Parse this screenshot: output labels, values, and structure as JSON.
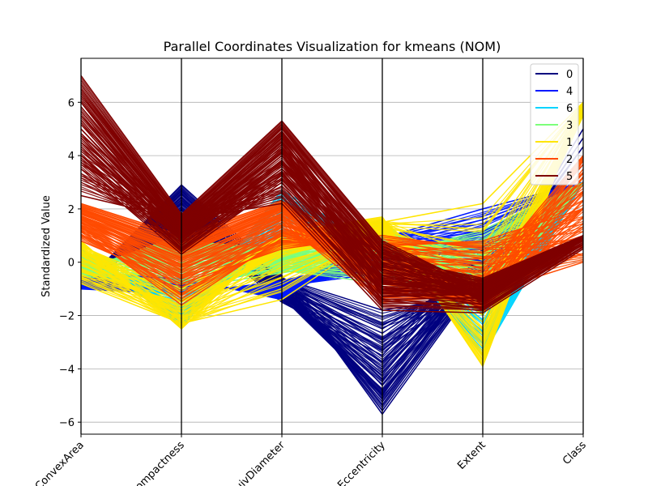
{
  "chart_data": {
    "type": "line",
    "title": "Parallel Coordinates Visualization for kmeans (NOM)",
    "xlabel": "",
    "ylabel": "Standardized Value",
    "categories": [
      "ConvexArea",
      "Compactness",
      "EquivDiameter",
      "Eccentricity",
      "Extent",
      "Class"
    ],
    "ylim": [
      -6.45,
      7.65
    ],
    "yticks": [
      -6,
      -4,
      -2,
      0,
      2,
      4,
      6
    ],
    "grid": true,
    "legend_position": "top-right",
    "series": [
      {
        "name": "0",
        "color": "#00007f",
        "profiles": [
          [
            -0.9,
            2.9,
            -0.5,
            -5.7,
            -0.5,
            3.0
          ],
          [
            -0.7,
            2.2,
            -1.0,
            -4.8,
            -0.3,
            3.0
          ],
          [
            -0.8,
            1.5,
            -1.5,
            -3.5,
            0.5,
            3.0
          ],
          [
            -0.5,
            1.0,
            -0.8,
            -2.5,
            -0.2,
            3.0
          ],
          [
            -1.0,
            2.6,
            -1.3,
            -5.0,
            0.2,
            3.0
          ],
          [
            -0.6,
            1.8,
            -0.6,
            -1.8,
            -1.2,
            5.0
          ]
        ]
      },
      {
        "name": "4",
        "color": "#0019ff",
        "profiles": [
          [
            -0.6,
            -0.8,
            -1.2,
            0.5,
            1.2,
            3.0
          ],
          [
            -0.8,
            -1.0,
            -0.9,
            -0.4,
            0.8,
            3.0
          ],
          [
            -0.4,
            -0.6,
            -1.4,
            0.9,
            2.0,
            3.0
          ],
          [
            -1.0,
            -1.2,
            -0.7,
            0.2,
            -0.5,
            3.0
          ],
          [
            -0.7,
            -0.9,
            -1.0,
            1.1,
            0.3,
            3.0
          ]
        ]
      },
      {
        "name": "6",
        "color": "#00d4ff",
        "profiles": [
          [
            0.2,
            -2.2,
            2.7,
            0.5,
            -3.0,
            3.0
          ],
          [
            -0.3,
            -1.5,
            0.5,
            0.8,
            -1.5,
            3.0
          ],
          [
            0.5,
            -2.4,
            1.5,
            1.0,
            -3.5,
            3.0
          ],
          [
            -0.1,
            -1.0,
            -0.2,
            0.3,
            -0.8,
            3.0
          ],
          [
            0.3,
            -2.0,
            2.2,
            0.6,
            -2.5,
            3.0
          ]
        ]
      },
      {
        "name": "3",
        "color": "#7dff7a",
        "profiles": [
          [
            -0.3,
            1.0,
            -0.3,
            -0.8,
            -1.5,
            3.0
          ],
          [
            -0.2,
            0.5,
            0.2,
            0.9,
            0.6,
            3.0
          ],
          [
            0.4,
            -0.5,
            0.8,
            1.4,
            -0.9,
            3.0
          ],
          [
            -0.5,
            -1.0,
            -0.4,
            0.2,
            1.2,
            3.0
          ],
          [
            0.0,
            0.2,
            0.0,
            0.5,
            0.0,
            3.0
          ],
          [
            -0.4,
            0.8,
            0.5,
            1.6,
            -1.8,
            3.0
          ]
        ]
      },
      {
        "name": "1",
        "color": "#ffe500",
        "profiles": [
          [
            0.8,
            -2.5,
            1.1,
            1.7,
            -3.9,
            6.0
          ],
          [
            0.3,
            -2.0,
            0.6,
            1.3,
            -3.5,
            6.0
          ],
          [
            -0.5,
            -1.5,
            0.3,
            1.0,
            -2.5,
            5.5
          ],
          [
            0.6,
            -1.0,
            1.0,
            1.5,
            2.2,
            6.0
          ],
          [
            -0.8,
            -2.3,
            -1.4,
            1.1,
            -1.0,
            5.8
          ]
        ]
      },
      {
        "name": "2",
        "color": "#ff4a00",
        "profiles": [
          [
            2.2,
            1.0,
            2.3,
            0.3,
            -1.8,
            2.0
          ],
          [
            1.5,
            -0.3,
            1.5,
            -1.5,
            -1.2,
            0.0
          ],
          [
            1.8,
            0.4,
            1.9,
            -0.5,
            -0.5,
            4.0
          ],
          [
            0.8,
            -0.8,
            0.5,
            1.0,
            0.5,
            0.3
          ],
          [
            2.0,
            0.6,
            2.1,
            -1.0,
            -1.6,
            3.8
          ],
          [
            1.2,
            -1.6,
            0.9,
            0.6,
            0.8,
            2.0
          ]
        ]
      },
      {
        "name": "5",
        "color": "#7f0000",
        "profiles": [
          [
            7.0,
            1.8,
            5.3,
            0.8,
            -1.0,
            1.0
          ],
          [
            6.5,
            1.5,
            5.0,
            0.5,
            -1.5,
            1.0
          ],
          [
            5.0,
            1.0,
            4.0,
            -0.5,
            -1.3,
            0.8
          ],
          [
            3.5,
            0.3,
            3.0,
            -1.0,
            -0.8,
            1.0
          ],
          [
            2.5,
            1.6,
            2.2,
            -1.8,
            -1.9,
            0.5
          ],
          [
            4.0,
            0.8,
            3.5,
            0.2,
            -0.6,
            1.0
          ],
          [
            6.0,
            1.2,
            4.5,
            -1.3,
            -1.2,
            1.0
          ]
        ]
      }
    ]
  }
}
